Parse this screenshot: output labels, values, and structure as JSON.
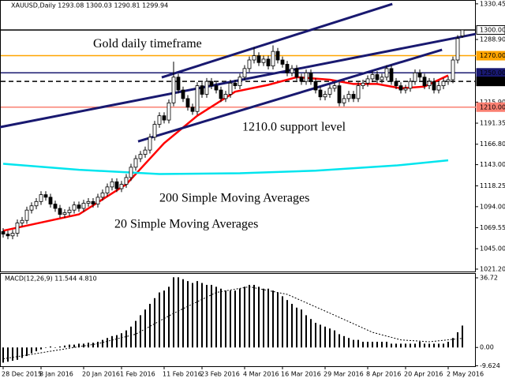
{
  "chart_data": {
    "type": "candlestick",
    "header": "XAUUSD,Daily  1293.08 1300.03 1290.81 1299.94",
    "ylim": [
      1017.5,
      1334
    ],
    "yticks": [
      {
        "value": 1330.45,
        "label": "1330.45"
      },
      {
        "value": 1288.9,
        "label": "1288.90"
      },
      {
        "value": 1215.9,
        "label": "1215.90"
      },
      {
        "value": 1191.35,
        "label": "1191.35"
      },
      {
        "value": 1166.8,
        "label": "1166.80"
      },
      {
        "value": 1143,
        "label": "1143.00"
      },
      {
        "value": 1118.25,
        "label": "1118.25"
      },
      {
        "value": 1094,
        "label": "1094.00"
      },
      {
        "value": 1069.55,
        "label": "1069.55"
      },
      {
        "value": 1045,
        "label": "1045.00"
      },
      {
        "value": 1021.2,
        "label": "1021.20"
      }
    ],
    "xticks": [
      {
        "value": 0,
        "label": "28 Dec 2015"
      },
      {
        "value": 8,
        "label": "8 Jan 2016"
      },
      {
        "value": 17,
        "label": "20 Jan 2016"
      },
      {
        "value": 25,
        "label": "1 Feb 2016"
      },
      {
        "value": 34,
        "label": "11 Feb 2016"
      },
      {
        "value": 42,
        "label": "23 Feb 2016"
      },
      {
        "value": 51,
        "label": "4 Mar 2016"
      },
      {
        "value": 59,
        "label": "16 Mar 2016"
      },
      {
        "value": 68,
        "label": "29 Mar 2016"
      },
      {
        "value": 77,
        "label": "8 Apr 2016"
      },
      {
        "value": 85,
        "label": "20 Apr 2016"
      },
      {
        "value": 94,
        "label": "2 May 2016"
      }
    ],
    "up_color": "#ffffff",
    "down_color": "#000000",
    "ohlc": [
      [
        1065,
        1069,
        1058,
        1062
      ],
      [
        1062,
        1066,
        1056,
        1060
      ],
      [
        1060,
        1067,
        1056,
        1063
      ],
      [
        1063,
        1079,
        1059,
        1075
      ],
      [
        1075,
        1082,
        1071,
        1078
      ],
      [
        1078,
        1094,
        1074,
        1090
      ],
      [
        1090,
        1099,
        1086,
        1095
      ],
      [
        1095,
        1104,
        1091,
        1100
      ],
      [
        1100,
        1112,
        1096,
        1108
      ],
      [
        1108,
        1112,
        1101,
        1105
      ],
      [
        1105,
        1109,
        1093,
        1097
      ],
      [
        1097,
        1101,
        1088,
        1092
      ],
      [
        1092,
        1096,
        1081,
        1085
      ],
      [
        1085,
        1091,
        1081,
        1087
      ],
      [
        1087,
        1094,
        1083,
        1090
      ],
      [
        1090,
        1100,
        1086,
        1096
      ],
      [
        1096,
        1100,
        1088,
        1092
      ],
      [
        1092,
        1102,
        1088,
        1098
      ],
      [
        1098,
        1104,
        1094,
        1100
      ],
      [
        1100,
        1104,
        1093,
        1097
      ],
      [
        1097,
        1109,
        1093,
        1105
      ],
      [
        1105,
        1114,
        1101,
        1110
      ],
      [
        1110,
        1121,
        1106,
        1117
      ],
      [
        1117,
        1127,
        1113,
        1123
      ],
      [
        1123,
        1127,
        1111,
        1115
      ],
      [
        1115,
        1124,
        1111,
        1120
      ],
      [
        1120,
        1132,
        1116,
        1128
      ],
      [
        1128,
        1144,
        1124,
        1140
      ],
      [
        1140,
        1154,
        1136,
        1150
      ],
      [
        1150,
        1159,
        1146,
        1155
      ],
      [
        1155,
        1164,
        1151,
        1160
      ],
      [
        1160,
        1179,
        1156,
        1175
      ],
      [
        1175,
        1194,
        1171,
        1190
      ],
      [
        1190,
        1204,
        1186,
        1200
      ],
      [
        1200,
        1204,
        1191,
        1195
      ],
      [
        1195,
        1219,
        1191,
        1215
      ],
      [
        1215,
        1263,
        1211,
        1245
      ],
      [
        1245,
        1249,
        1226,
        1230
      ],
      [
        1230,
        1234,
        1216,
        1220
      ],
      [
        1220,
        1224,
        1206,
        1210
      ],
      [
        1210,
        1214,
        1201,
        1205
      ],
      [
        1205,
        1239,
        1201,
        1235
      ],
      [
        1235,
        1239,
        1221,
        1225
      ],
      [
        1225,
        1244,
        1221,
        1240
      ],
      [
        1240,
        1244,
        1231,
        1235
      ],
      [
        1235,
        1239,
        1226,
        1230
      ],
      [
        1230,
        1234,
        1216,
        1220
      ],
      [
        1220,
        1229,
        1216,
        1225
      ],
      [
        1225,
        1242,
        1221,
        1238
      ],
      [
        1238,
        1242,
        1231,
        1235
      ],
      [
        1235,
        1249,
        1231,
        1245
      ],
      [
        1245,
        1259,
        1241,
        1255
      ],
      [
        1255,
        1269,
        1251,
        1265
      ],
      [
        1265,
        1280,
        1261,
        1270
      ],
      [
        1270,
        1274,
        1258,
        1262
      ],
      [
        1262,
        1270,
        1258,
        1266
      ],
      [
        1266,
        1270,
        1254,
        1258
      ],
      [
        1258,
        1282,
        1254,
        1275
      ],
      [
        1275,
        1279,
        1261,
        1265
      ],
      [
        1265,
        1269,
        1256,
        1260
      ],
      [
        1260,
        1264,
        1246,
        1250
      ],
      [
        1250,
        1259,
        1246,
        1255
      ],
      [
        1255,
        1259,
        1241,
        1245
      ],
      [
        1245,
        1249,
        1236,
        1240
      ],
      [
        1240,
        1254,
        1236,
        1250
      ],
      [
        1250,
        1254,
        1236,
        1240
      ],
      [
        1240,
        1244,
        1226,
        1230
      ],
      [
        1230,
        1234,
        1218,
        1222
      ],
      [
        1222,
        1229,
        1218,
        1225
      ],
      [
        1225,
        1236,
        1221,
        1232
      ],
      [
        1232,
        1239,
        1228,
        1235
      ],
      [
        1235,
        1239,
        1211,
        1215
      ],
      [
        1215,
        1224,
        1211,
        1220
      ],
      [
        1220,
        1229,
        1216,
        1225
      ],
      [
        1225,
        1229,
        1216,
        1220
      ],
      [
        1220,
        1239,
        1216,
        1235
      ],
      [
        1235,
        1242,
        1231,
        1238
      ],
      [
        1238,
        1247,
        1234,
        1243
      ],
      [
        1243,
        1252,
        1239,
        1248
      ],
      [
        1248,
        1252,
        1238,
        1242
      ],
      [
        1242,
        1249,
        1238,
        1245
      ],
      [
        1245,
        1259,
        1241,
        1255
      ],
      [
        1255,
        1259,
        1236,
        1240
      ],
      [
        1240,
        1244,
        1231,
        1235
      ],
      [
        1235,
        1239,
        1226,
        1230
      ],
      [
        1230,
        1236,
        1226,
        1232
      ],
      [
        1232,
        1244,
        1228,
        1240
      ],
      [
        1240,
        1254,
        1236,
        1250
      ],
      [
        1250,
        1254,
        1241,
        1245
      ],
      [
        1245,
        1249,
        1231,
        1235
      ],
      [
        1235,
        1244,
        1231,
        1240
      ],
      [
        1240,
        1244,
        1226,
        1230
      ],
      [
        1230,
        1239,
        1226,
        1235
      ],
      [
        1235,
        1244,
        1231,
        1240
      ],
      [
        1240,
        1246,
        1236,
        1242
      ],
      [
        1242,
        1269,
        1238,
        1265
      ],
      [
        1265,
        1294,
        1261,
        1290
      ],
      [
        1293.08,
        1300.03,
        1290.81,
        1299.94
      ]
    ],
    "series": [
      {
        "name": "20 Simple Moving Averages",
        "color": "#ff0000",
        "x": [
          0,
          16,
          26,
          34,
          41,
          49,
          56,
          62,
          69,
          74,
          79,
          84,
          89,
          94
        ],
        "values": [
          1066,
          1085,
          1120,
          1168,
          1200,
          1228,
          1236,
          1245,
          1242,
          1237,
          1237,
          1232,
          1234,
          1247
        ]
      },
      {
        "name": "200 Simple Moving Averages",
        "color": "#00e5ee",
        "x": [
          0,
          16,
          33,
          50,
          66,
          83,
          94
        ],
        "values": [
          1144,
          1137,
          1132,
          1133,
          1136,
          1142,
          1148
        ]
      }
    ],
    "levels": [
      {
        "value": 1300,
        "label": "1300.00",
        "color": "#000000",
        "label_bg": "#ffffff",
        "label_color": "#000000"
      },
      {
        "value": 1270,
        "label": "1270.00",
        "color": "#ffa500",
        "label_bg": "#ffa500",
        "label_color": "#ffffff"
      },
      {
        "value": 1250,
        "label": "1250.00",
        "color": "#191970",
        "label_bg": "#191970",
        "label_color": "#ffffff"
      },
      {
        "value": 1240,
        "label": "1240.00",
        "color": "#000000",
        "label_bg": "#000000",
        "label_color": "#ffffff",
        "dashed": true
      },
      {
        "value": 1210,
        "label": "1210.00",
        "color": "#fa8072",
        "label_bg": "#fa8072",
        "label_color": "#ffffff"
      }
    ],
    "trendlines": {
      "color": "#191970",
      "lines": [
        [
          [
            -0.7,
            1186.7
          ],
          [
            99.8,
            1295.3
          ]
        ],
        [
          [
            33.5,
            1244.7
          ],
          [
            82.2,
            1330.3
          ]
        ],
        [
          [
            28.5,
            1170.1
          ],
          [
            92.7,
            1276.9
          ]
        ]
      ]
    },
    "annotations": [
      {
        "text": "Gold daily timeframe",
        "color": "#191970",
        "at": [
          19,
          1283
        ]
      },
      {
        "text": "1210.0 support level",
        "color": "#fa8072",
        "at": [
          50.5,
          1186
        ]
      },
      {
        "text": "200 Simple Moving Averages",
        "color": "#00e5ee",
        "at": [
          33,
          1103
        ]
      },
      {
        "text": "20 Simple Moving Averages",
        "color": "#ff0000",
        "at": [
          23.5,
          1073
        ]
      }
    ],
    "macd": {
      "title": "MACD(12,26,9) 11.544 4.810",
      "ylim": [
        -10.3,
        38.8
      ],
      "yticks": [
        {
          "value": 36.72,
          "label": "36.72"
        },
        {
          "value": 0,
          "label": "0.00"
        },
        {
          "value": -9.624,
          "label": "-9.624"
        }
      ],
      "values": [
        -8,
        -7.5,
        -7,
        -6.5,
        -5.5,
        -4.5,
        -3,
        -2,
        -1,
        0,
        0.5,
        0,
        0.5,
        1,
        1.5,
        1.5,
        2,
        2,
        2.5,
        2.5,
        3,
        4,
        5,
        6,
        6.5,
        7.5,
        9,
        11,
        14,
        17,
        20,
        23,
        26,
        29,
        30,
        32,
        37,
        37,
        36,
        35,
        34,
        35,
        34,
        33,
        33,
        32,
        31,
        30,
        30,
        30,
        31,
        32,
        33,
        33,
        32,
        31,
        31,
        30,
        29,
        27,
        25,
        23,
        21,
        20,
        17,
        15,
        13,
        12,
        11,
        10,
        9,
        7,
        6,
        5,
        4,
        4,
        3,
        3,
        3,
        3,
        3,
        3,
        2,
        2,
        2,
        2,
        2,
        2,
        3,
        2,
        2,
        2,
        2,
        2,
        3,
        5,
        8,
        11.544
      ],
      "signal": {
        "x": [
          0,
          10,
          20,
          28,
          36,
          45,
          52,
          60,
          70,
          78,
          84,
          90,
          97
        ],
        "values": [
          -6,
          -2,
          2,
          7,
          18,
          29,
          32,
          28,
          17,
          8,
          4,
          3,
          4.81
        ]
      }
    }
  }
}
